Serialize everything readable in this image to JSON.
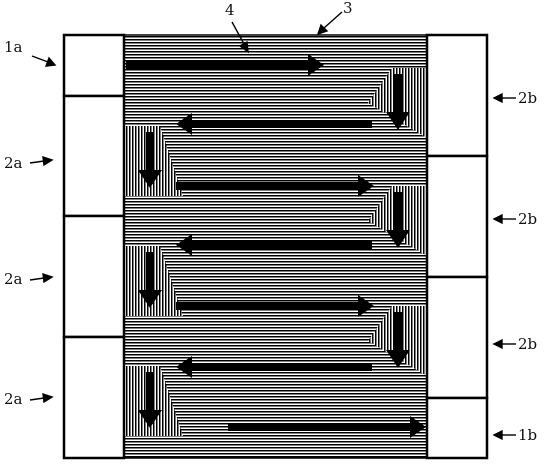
{
  "labels": {
    "ref_3": "3",
    "ref_4": "4",
    "left_top": "1a",
    "left_1": "2a",
    "left_2": "2a",
    "left_3": "2a",
    "right_1": "2b",
    "right_2": "2b",
    "right_3": "2b",
    "right_bottom": "1b"
  },
  "colors": {
    "line": "#000000",
    "background": "#ffffff"
  }
}
